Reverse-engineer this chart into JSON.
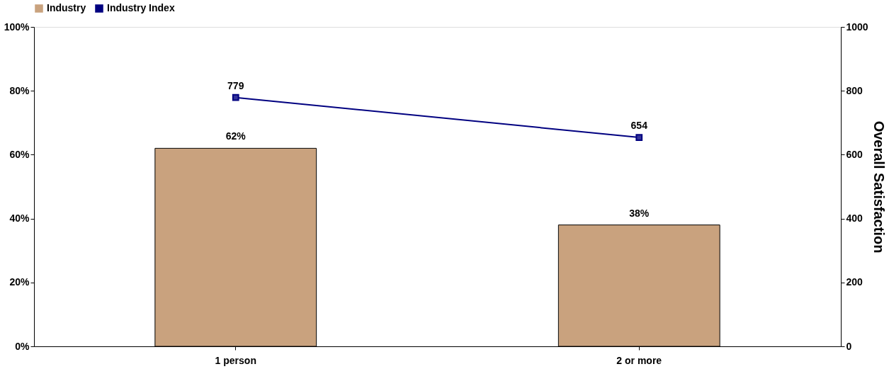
{
  "chart_data": {
    "type": "bar",
    "categories": [
      "1 person",
      "2 or more"
    ],
    "series": [
      {
        "name": "Industry",
        "color": "#c9a27e",
        "values": [
          62,
          38
        ],
        "value_labels": [
          "62%",
          "38%"
        ]
      },
      {
        "name": "Industry Index",
        "type": "line",
        "axis": "y2",
        "color": "#000080",
        "values": [
          779,
          654
        ],
        "value_labels": [
          "779",
          "654"
        ],
        "marker": "square"
      }
    ],
    "ylim": [
      0,
      100
    ],
    "yticks": [
      {
        "value": 0,
        "label": "0%"
      },
      {
        "value": 20,
        "label": "20%"
      },
      {
        "value": 40,
        "label": "40%"
      },
      {
        "value": 60,
        "label": "60%"
      },
      {
        "value": 80,
        "label": "80%"
      },
      {
        "value": 100,
        "label": "100%"
      }
    ],
    "y2lim": [
      0,
      1000
    ],
    "y2ticks": [
      0,
      200,
      400,
      600,
      800,
      1000
    ],
    "y2label": "Overall Satisfaction",
    "legend": "top",
    "grid": false
  }
}
